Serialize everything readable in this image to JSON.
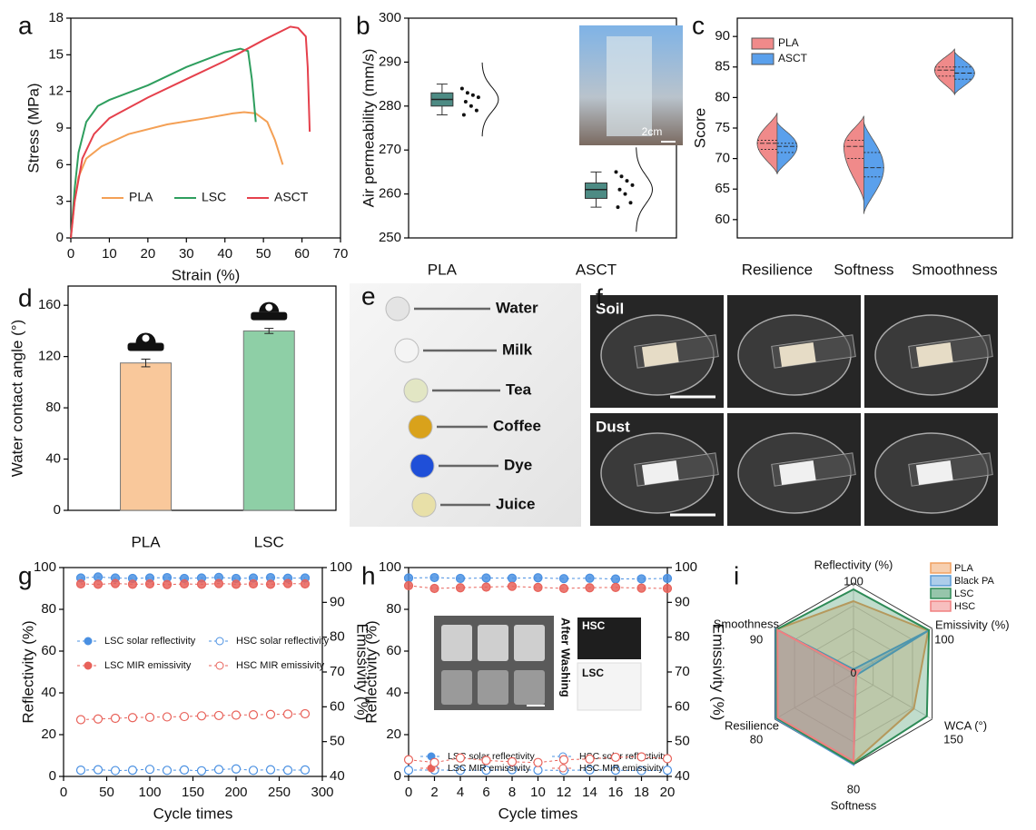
{
  "chart_data": [
    {
      "panel": "a",
      "type": "line",
      "xlabel": "Strain (%)",
      "ylabel": "Stress (MPa)",
      "xlim": [
        0,
        70
      ],
      "xticks": [
        0,
        10,
        20,
        30,
        40,
        50,
        60,
        70
      ],
      "ylim": [
        0,
        18
      ],
      "yticks": [
        0,
        3,
        6,
        9,
        12,
        15,
        18
      ],
      "series": [
        {
          "name": "PLA",
          "color": "#f4a055",
          "x": [
            0,
            1,
            2,
            4,
            8,
            15,
            25,
            35,
            42,
            45,
            48,
            51,
            53,
            55
          ],
          "values": [
            0,
            3,
            5,
            6.5,
            7.5,
            8.5,
            9.3,
            9.8,
            10.2,
            10.3,
            10.2,
            9.5,
            8,
            6
          ]
        },
        {
          "name": "LSC",
          "color": "#2e9e5e",
          "x": [
            0,
            1,
            2,
            4,
            7,
            10,
            20,
            30,
            40,
            44,
            46,
            47,
            48
          ],
          "values": [
            0,
            4,
            7,
            9.5,
            10.8,
            11.3,
            12.5,
            14,
            15.2,
            15.5,
            15.3,
            13,
            9.5
          ]
        },
        {
          "name": "ASCT",
          "color": "#e5404c",
          "x": [
            0,
            1,
            3,
            6,
            10,
            20,
            30,
            40,
            50,
            57,
            59,
            61,
            61.5,
            62
          ],
          "values": [
            0,
            3,
            6.5,
            8.5,
            9.8,
            11.5,
            13,
            14.5,
            16.2,
            17.3,
            17.2,
            16.5,
            14,
            8.7
          ]
        }
      ]
    },
    {
      "panel": "b",
      "type": "box",
      "ylabel": "Air permeability (mm/s)",
      "categories": [
        "PLA",
        "ASCT"
      ],
      "ylim": [
        250,
        300
      ],
      "yticks": [
        250,
        260,
        270,
        280,
        290,
        300
      ],
      "color": "#4d8b84",
      "annotation": "2cm",
      "boxes": [
        {
          "min": 278,
          "q1": 280,
          "median": 281.5,
          "q3": 283,
          "max": 285,
          "points": [
            284,
            283,
            282.5,
            282,
            281,
            280,
            279,
            278
          ]
        },
        {
          "min": 257,
          "q1": 259,
          "median": 261,
          "q3": 262.5,
          "max": 265,
          "points": [
            265,
            264,
            263,
            262,
            261,
            260,
            258,
            257
          ]
        }
      ]
    },
    {
      "panel": "c",
      "type": "violin",
      "ylabel": "Score",
      "categories": [
        "Resilience",
        "Softness",
        "Smoothness"
      ],
      "ylim": [
        57,
        93
      ],
      "yticks": [
        60,
        65,
        70,
        75,
        80,
        85,
        90
      ],
      "series": [
        {
          "name": "PLA",
          "color": "#f08a8a",
          "min": [
            67.5,
            63,
            80.5
          ],
          "q1": [
            71.5,
            70,
            83.5
          ],
          "median": [
            72.5,
            72,
            84.5
          ],
          "q3": [
            73,
            73,
            85
          ],
          "max": [
            77.5,
            77,
            88
          ]
        },
        {
          "name": "ASCT",
          "color": "#5aa0ec",
          "min": [
            67.5,
            61,
            80.5
          ],
          "q1": [
            71,
            67,
            83
          ],
          "median": [
            72,
            68.5,
            84
          ],
          "q3": [
            72.5,
            71,
            85
          ],
          "max": [
            76,
            76,
            87.5
          ]
        }
      ]
    },
    {
      "panel": "d",
      "type": "bar",
      "ylabel": "Water contact angle (°)",
      "categories": [
        "PLA",
        "LSC"
      ],
      "values": [
        115,
        140
      ],
      "errors": [
        3,
        2
      ],
      "colors": [
        "#f9c89b",
        "#8ecfa6"
      ],
      "ylim": [
        0,
        175
      ],
      "yticks": [
        0,
        40,
        80,
        120,
        160
      ]
    },
    {
      "panel": "e",
      "type": "image",
      "labels": [
        "Water",
        "Milk",
        "Tea",
        "Coffee",
        "Dye",
        "Juice"
      ],
      "colors": [
        "#e4e4e4",
        "#f4f4f4",
        "#e2e6c4",
        "#d9a21b",
        "#1f4fd8",
        "#e8e0a8"
      ]
    },
    {
      "panel": "f",
      "type": "image",
      "labels": [
        "Soil",
        "Dust"
      ]
    },
    {
      "panel": "g",
      "type": "line",
      "xlabel": "Cycle times",
      "ylabel": "Reflectivity (%)",
      "y2label": "Emissivity (%)",
      "x": [
        20,
        40,
        60,
        80,
        100,
        120,
        140,
        160,
        180,
        200,
        220,
        240,
        260,
        280
      ],
      "xlim": [
        0,
        300
      ],
      "xticks": [
        0,
        50,
        100,
        150,
        200,
        250,
        300
      ],
      "ylim": [
        0,
        100
      ],
      "yticks": [
        0,
        20,
        40,
        60,
        80,
        100
      ],
      "y2lim": [
        40,
        100
      ],
      "y2ticks": [
        40,
        50,
        60,
        70,
        80,
        90,
        100
      ],
      "series": [
        {
          "name": "LSC solar reflectivity",
          "color": "#4a90e2",
          "marker": "filled",
          "values": [
            95,
            95.5,
            95,
            94.8,
            95,
            95.2,
            94.8,
            95,
            95.3,
            94.8,
            95,
            95.2,
            94.9,
            95
          ]
        },
        {
          "name": "HSC solar reflectivity",
          "color": "#4a90e2",
          "marker": "hollow",
          "values": [
            3,
            3.2,
            2.8,
            3,
            3.4,
            2.9,
            3.1,
            2.7,
            3.3,
            3.6,
            2.9,
            3.2,
            3,
            3.1
          ]
        },
        {
          "name": "LSC MIR emissivity",
          "color": "#e8625a",
          "marker": "filled",
          "axis": "y2",
          "values": [
            95.3,
            95.2,
            95.4,
            95.2,
            95.3,
            95.1,
            95.3,
            95.2,
            95.4,
            95.2,
            95.3,
            95.2,
            95.4,
            95.3
          ]
        },
        {
          "name": "HSC MIR emissivity",
          "color": "#e8625a",
          "marker": "hollow",
          "axis": "y2",
          "values": [
            56.3,
            56.5,
            56.7,
            56.9,
            57,
            57.1,
            57.2,
            57.4,
            57.5,
            57.6,
            57.7,
            57.8,
            57.9,
            58
          ]
        }
      ]
    },
    {
      "panel": "h",
      "type": "line",
      "xlabel": "Cycle times",
      "ylabel": "Reflectivity (%)",
      "y2label": "Emissivity (%)",
      "annotations": [
        "After Washing",
        "HSC",
        "LSC"
      ],
      "x": [
        0,
        2,
        4,
        6,
        8,
        10,
        12,
        14,
        16,
        18,
        20
      ],
      "xlim": [
        0,
        20
      ],
      "xticks": [
        0,
        2,
        4,
        6,
        8,
        10,
        12,
        14,
        16,
        18,
        20
      ],
      "ylim": [
        0,
        100
      ],
      "yticks": [
        0,
        20,
        40,
        60,
        80,
        100
      ],
      "y2lim": [
        40,
        100
      ],
      "y2ticks": [
        40,
        50,
        60,
        70,
        80,
        90,
        100
      ],
      "series": [
        {
          "name": "LSC solar reflectivity",
          "color": "#4a90e2",
          "marker": "filled",
          "values": [
            95,
            95.2,
            94.8,
            95,
            94.9,
            95.1,
            94.7,
            94.9,
            94.5,
            94.6,
            94.8
          ]
        },
        {
          "name": "HSC solar reflectivity",
          "color": "#4a90e2",
          "marker": "hollow",
          "values": [
            3,
            3.1,
            2.9,
            3,
            3.2,
            3,
            2.9,
            3.1,
            3,
            2.8,
            3
          ]
        },
        {
          "name": "LSC MIR emissivity",
          "color": "#e8625a",
          "marker": "filled",
          "axis": "y2",
          "values": [
            94.8,
            94,
            94.2,
            94.4,
            94.6,
            94.3,
            94,
            94.2,
            94.3,
            94.1,
            94
          ]
        },
        {
          "name": "HSC MIR emissivity",
          "color": "#e8625a",
          "marker": "hollow",
          "axis": "y2",
          "values": [
            44.8,
            44,
            45.3,
            44.6,
            44.2,
            44,
            44.8,
            45,
            45.5,
            45.6,
            45.1
          ]
        }
      ]
    },
    {
      "panel": "i",
      "type": "radar",
      "rmin": 0,
      "axes": [
        {
          "label": "Reflectivity (%)",
          "max": 100
        },
        {
          "label": "Emissivity (%)",
          "max": 100
        },
        {
          "label": "WCA (°)",
          "max": 150
        },
        {
          "label": "Softness",
          "max": 80
        },
        {
          "label": "Resilience",
          "max": 80
        },
        {
          "label": "Smoothness",
          "max": 90
        }
      ],
      "series": [
        {
          "name": "PLA",
          "color": "#f0a060",
          "values": [
            80,
            95,
            115,
            78,
            78,
            88
          ]
        },
        {
          "name": "Black PA",
          "color": "#5b9bd5",
          "values": [
            5,
            95,
            5,
            80,
            79,
            89
          ]
        },
        {
          "name": "LSC",
          "color": "#2e8b57",
          "values": [
            93,
            96,
            140,
            79,
            78,
            88
          ]
        },
        {
          "name": "HSC",
          "color": "#f08080",
          "values": [
            3,
            8,
            5,
            77,
            77,
            87
          ]
        }
      ]
    }
  ]
}
